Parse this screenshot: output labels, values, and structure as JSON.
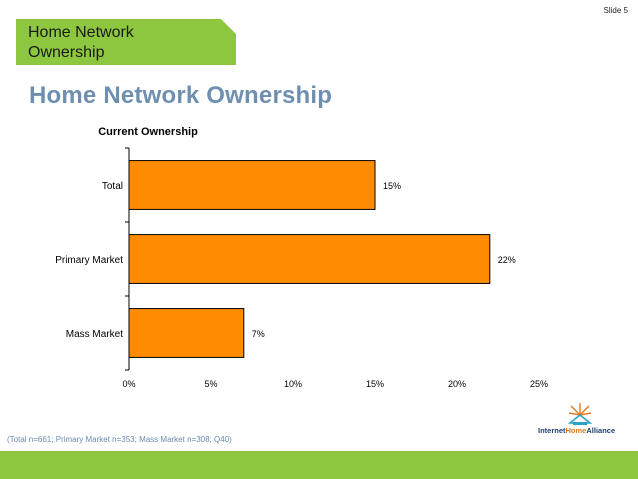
{
  "slide_number": "Slide 5",
  "header_tab_title": "Home Network Ownership",
  "main_title": "Home Network Ownership",
  "footnote": "(Total n=661; Primary Market n=353; Mass Market n=308; Q40)",
  "logo": {
    "part1": "Internet",
    "part2": "Home",
    "part3": "Alliance",
    "icon": "house-icon"
  },
  "colors": {
    "bar": "#ff8c00",
    "accent_green": "#8dc63f",
    "title_blue": "#6e8fb0"
  },
  "chart_data": {
    "type": "bar",
    "orientation": "horizontal",
    "title": "Current Ownership",
    "categories": [
      "Total",
      "Primary Market",
      "Mass Market"
    ],
    "values": [
      15,
      22,
      7
    ],
    "data_labels": [
      "15%",
      "22%",
      "7%"
    ],
    "xlim": [
      0,
      25
    ],
    "x_ticks": [
      "0%",
      "5%",
      "10%",
      "15%",
      "20%",
      "25%"
    ],
    "grid": false,
    "legend": "none"
  }
}
